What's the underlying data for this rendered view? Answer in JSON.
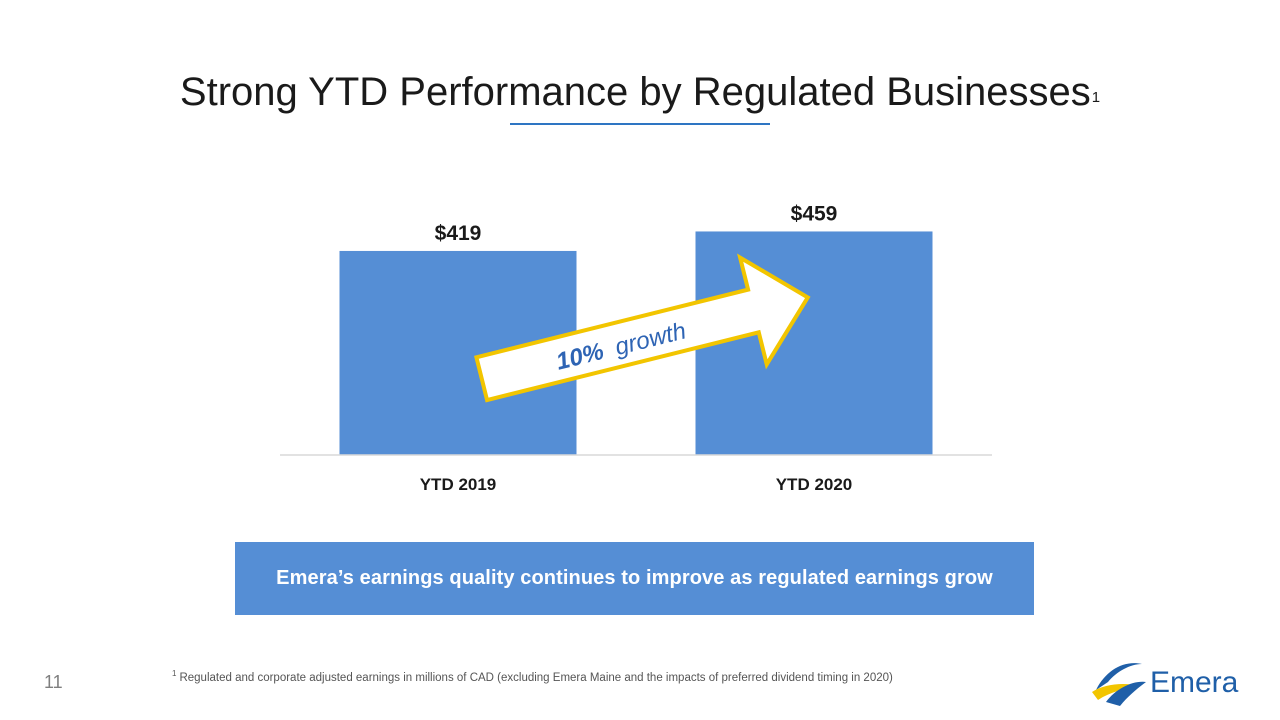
{
  "slide": {
    "title": "Strong YTD Performance by Regulated Businesses",
    "title_superscript": "1",
    "banner_text": "Emera’s earnings quality continues to improve as regulated earnings grow",
    "footnote_marker": "1",
    "footnote_text": "Regulated and corporate adjusted earnings in millions of CAD (excluding Emera Maine and the impacts of preferred dividend timing in 2020)",
    "page_number": "11",
    "logo_text": "Emera",
    "growth_arrow": {
      "bold_text": "10%",
      "text": "growth"
    }
  },
  "colors": {
    "bar": "#558ed5",
    "banner": "#558ed5",
    "title_rule": "#2e75c3",
    "arrow_border": "#f2c500",
    "logo_blue": "#1f5fa8",
    "logo_yellow": "#f2c500"
  },
  "chart_data": {
    "type": "bar",
    "categories": [
      "YTD 2019",
      "YTD 2020"
    ],
    "values": [
      419,
      459
    ],
    "data_labels": [
      "$419",
      "$459"
    ],
    "title": "",
    "xlabel": "",
    "ylabel": "",
    "ylim": [
      0,
      500
    ],
    "grid": false,
    "legend": "none"
  }
}
